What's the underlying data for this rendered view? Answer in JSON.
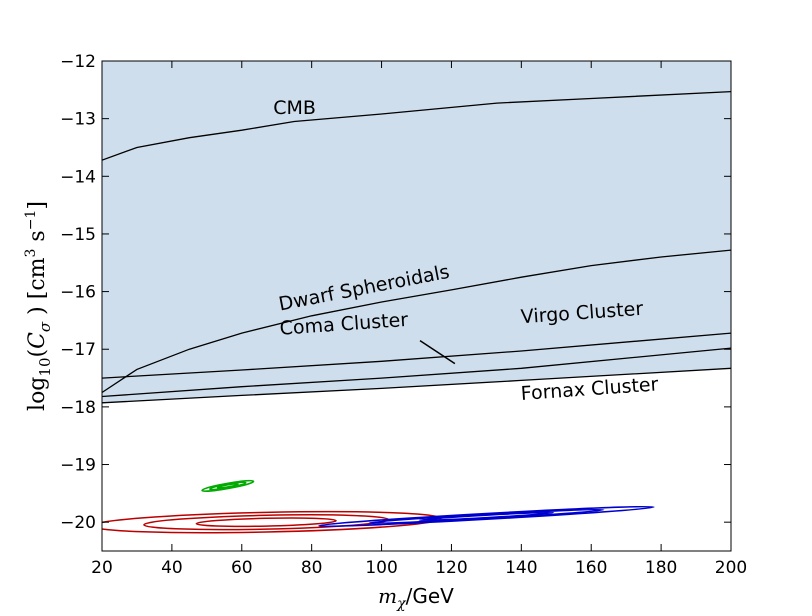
{
  "chart_data": {
    "type": "area",
    "title": "",
    "xlabel": "m_χ /GeV",
    "xlabel_math": "m",
    "xlabel_sub": "χ",
    "xlabel_unit": "/GeV",
    "ylabel": "log10(Cσ) [cm^3 s^-1]",
    "xlim": [
      20,
      200
    ],
    "ylim": [
      -20.5,
      -12
    ],
    "xticks": [
      20,
      40,
      60,
      80,
      100,
      120,
      140,
      160,
      180,
      200
    ],
    "yticks": [
      -20,
      -19,
      -18,
      -17,
      -16,
      -15,
      -14,
      -13,
      -12
    ],
    "ytick_labels": [
      "−20",
      "−19",
      "−18",
      "−17",
      "−16",
      "−15",
      "−14",
      "−13",
      "−12"
    ],
    "grid": false,
    "curves": [
      {
        "name": "CMB",
        "fill": "#4f88ba",
        "points": [
          [
            20,
            -13.72
          ],
          [
            30,
            -13.5
          ],
          [
            45,
            -13.33
          ],
          [
            60,
            -13.2
          ],
          [
            75,
            -13.05
          ],
          [
            100,
            -12.92
          ],
          [
            133,
            -12.73
          ],
          [
            160,
            -12.65
          ],
          [
            200,
            -12.53
          ]
        ]
      },
      {
        "name": "Dwarf Spheroidals",
        "fill": "#6a9dc6",
        "points": [
          [
            20,
            -17.75
          ],
          [
            30,
            -17.35
          ],
          [
            45,
            -17.0
          ],
          [
            60,
            -16.72
          ],
          [
            80,
            -16.42
          ],
          [
            100,
            -16.18
          ],
          [
            120,
            -15.97
          ],
          [
            140,
            -15.75
          ],
          [
            160,
            -15.55
          ],
          [
            180,
            -15.4
          ],
          [
            200,
            -15.28
          ]
        ]
      },
      {
        "name": "Coma Cluster",
        "fill": "#86aed1",
        "points": [
          [
            20,
            -17.5
          ],
          [
            60,
            -17.36
          ],
          [
            100,
            -17.21
          ],
          [
            140,
            -17.03
          ],
          [
            200,
            -16.72
          ]
        ]
      },
      {
        "name": "Virgo Cluster",
        "fill": "#a7c4de",
        "points": [
          [
            20,
            -17.82
          ],
          [
            60,
            -17.65
          ],
          [
            100,
            -17.5
          ],
          [
            140,
            -17.33
          ],
          [
            200,
            -16.98
          ]
        ]
      },
      {
        "name": "Fornax Cluster",
        "fill": "#cfdeec",
        "points": [
          [
            20,
            -17.93
          ],
          [
            60,
            -17.8
          ],
          [
            100,
            -17.68
          ],
          [
            140,
            -17.54
          ],
          [
            200,
            -17.33
          ]
        ]
      }
    ],
    "labels": [
      {
        "text": "CMB",
        "x": 69,
        "y": -12.92,
        "rotate": 0
      },
      {
        "text": "Dwarf Spheroidals",
        "x": 71,
        "y": -16.33,
        "rotate": -11
      },
      {
        "text": "Coma Cluster",
        "x": 71,
        "y": -16.75,
        "rotate": -4
      },
      {
        "text": "Virgo Cluster",
        "x": 140,
        "y": -16.55,
        "rotate": -4
      },
      {
        "text": "Fornax Cluster",
        "x": 140,
        "y": -17.88,
        "rotate": -4
      }
    ],
    "annotation_arrow": {
      "from": [
        111,
        -16.85
      ],
      "to": [
        121,
        -17.25
      ]
    },
    "contours": [
      {
        "color": "#00aa00",
        "cx": 56,
        "cy": -19.37,
        "scales": [
          1.0,
          0.7,
          0.4
        ],
        "major": 7.5,
        "minor": 0.045,
        "angle_slope": 0.0107
      },
      {
        "color": "#bb0000",
        "cx": 67,
        "cy": -20.0,
        "scales": [
          1.0,
          0.7,
          0.4
        ],
        "major": 50,
        "minor": 0.17,
        "angle_slope": 0.0013
      },
      {
        "color": "#0000cc",
        "cx": 130,
        "cy": -19.9,
        "scales": [
          1.0,
          0.7,
          0.4
        ],
        "major": 48,
        "minor": 0.05,
        "angle_slope": 0.0034
      }
    ]
  }
}
